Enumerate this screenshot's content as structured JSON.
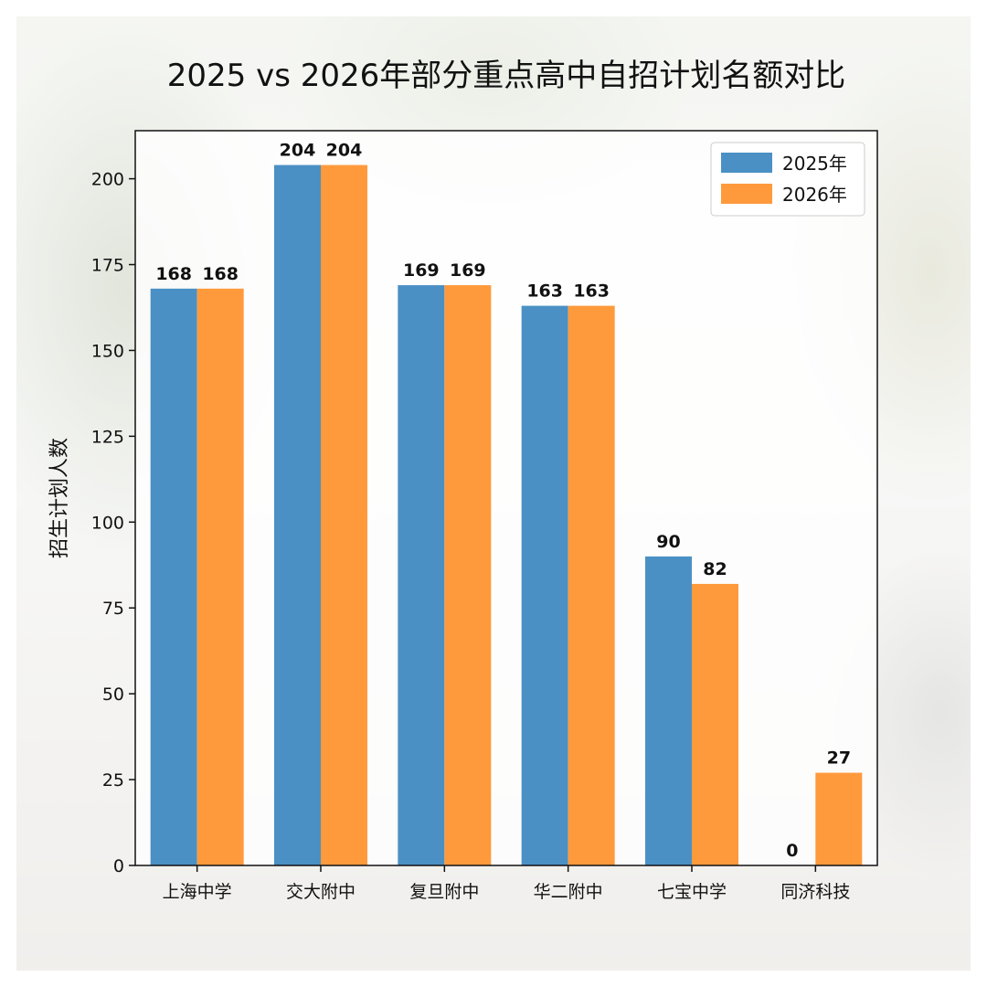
{
  "chart_data": {
    "type": "bar",
    "title": "2025 vs 2026年部分重点高中自招计划名额对比",
    "xlabel": "",
    "ylabel": "招生计划人数",
    "categories": [
      "上海中学",
      "交大附中",
      "复旦附中",
      "华二附中",
      "七宝中学",
      "同济科技"
    ],
    "series": [
      {
        "name": "2025年",
        "color": "#4a90c4",
        "values": [
          168,
          204,
          169,
          163,
          90,
          0
        ]
      },
      {
        "name": "2026年",
        "color": "#ff9a3c",
        "values": [
          168,
          204,
          169,
          163,
          82,
          27
        ]
      }
    ],
    "ylim": [
      0,
      214
    ],
    "yticks": [
      0,
      25,
      50,
      75,
      100,
      125,
      150,
      175,
      200
    ],
    "grid": false,
    "legend_position": "top-right",
    "show_value_labels": true
  }
}
